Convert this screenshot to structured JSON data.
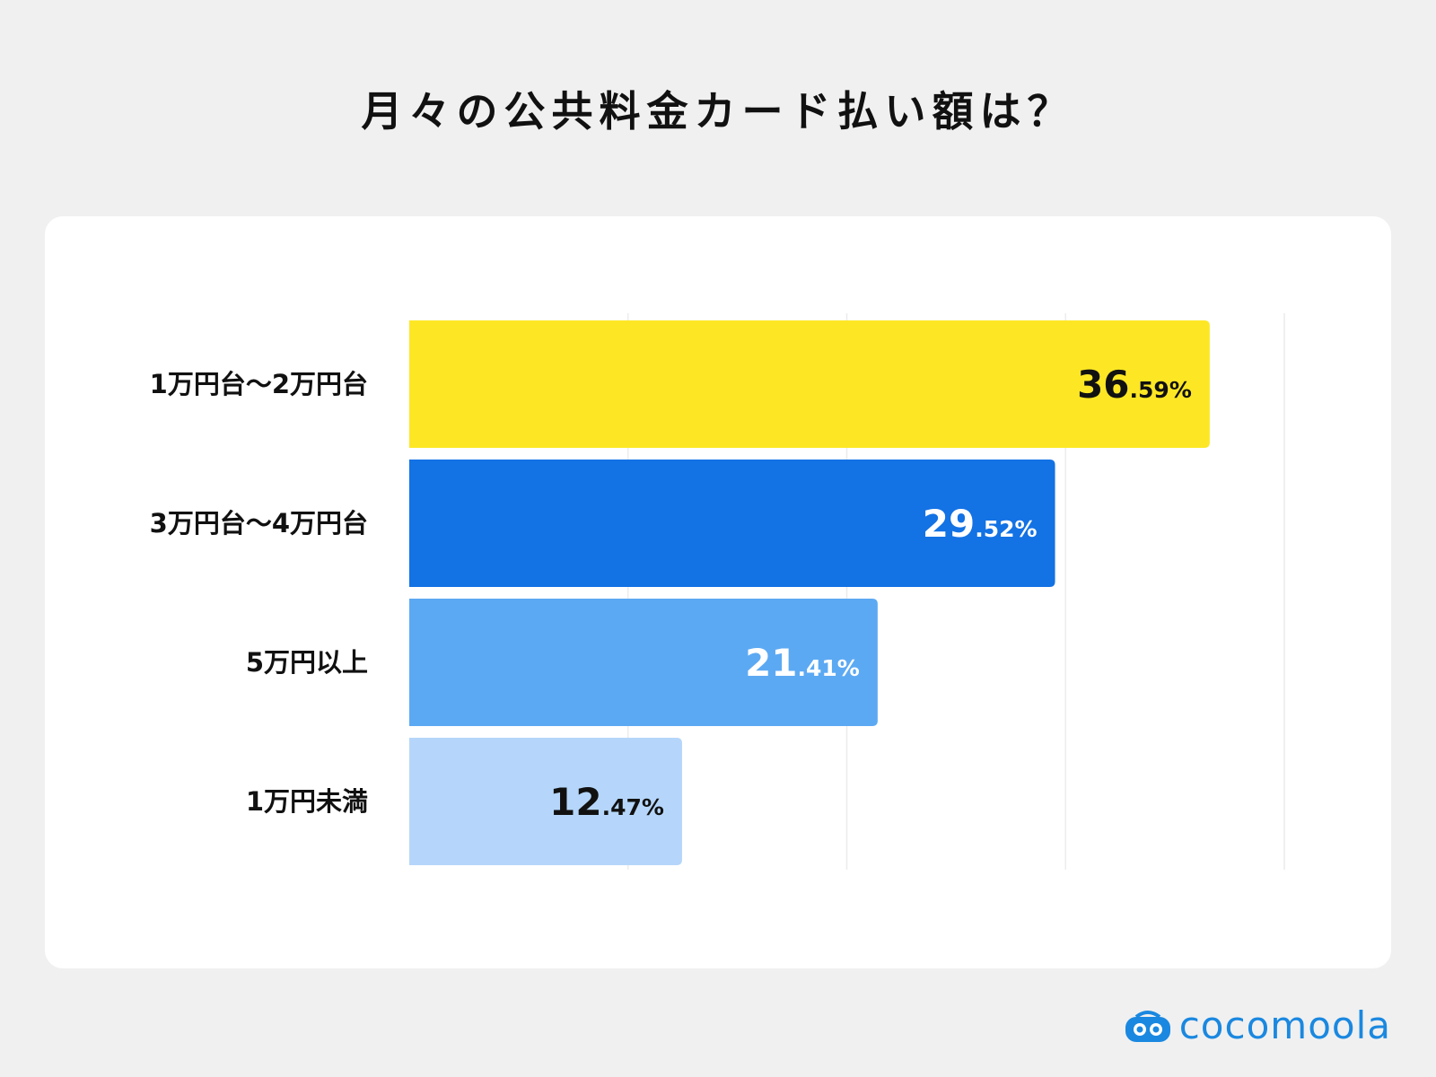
{
  "title": "月々の公共料金カード払い額は？",
  "brand": {
    "name": "cocomoola",
    "color": "#1a88e0"
  },
  "chart_data": {
    "type": "bar",
    "orientation": "horizontal",
    "categories": [
      "1万円台〜2万円台",
      "3万円台〜4万円台",
      "5万円以上",
      "1万円未満"
    ],
    "values": [
      36.59,
      29.52,
      21.41,
      12.47
    ],
    "value_labels": [
      {
        "int": "36",
        "dec": ".59%"
      },
      {
        "int": "29",
        "dec": ".52%"
      },
      {
        "int": "21",
        "dec": ".41%"
      },
      {
        "int": "12",
        "dec": ".47%"
      }
    ],
    "colors": [
      "#fde724",
      "#1372e4",
      "#5ca9f3",
      "#b5d6fa"
    ],
    "label_colors": [
      "#111111",
      "#ffffff",
      "#ffffff",
      "#111111"
    ],
    "xlim": [
      0,
      40
    ],
    "grid": true
  }
}
